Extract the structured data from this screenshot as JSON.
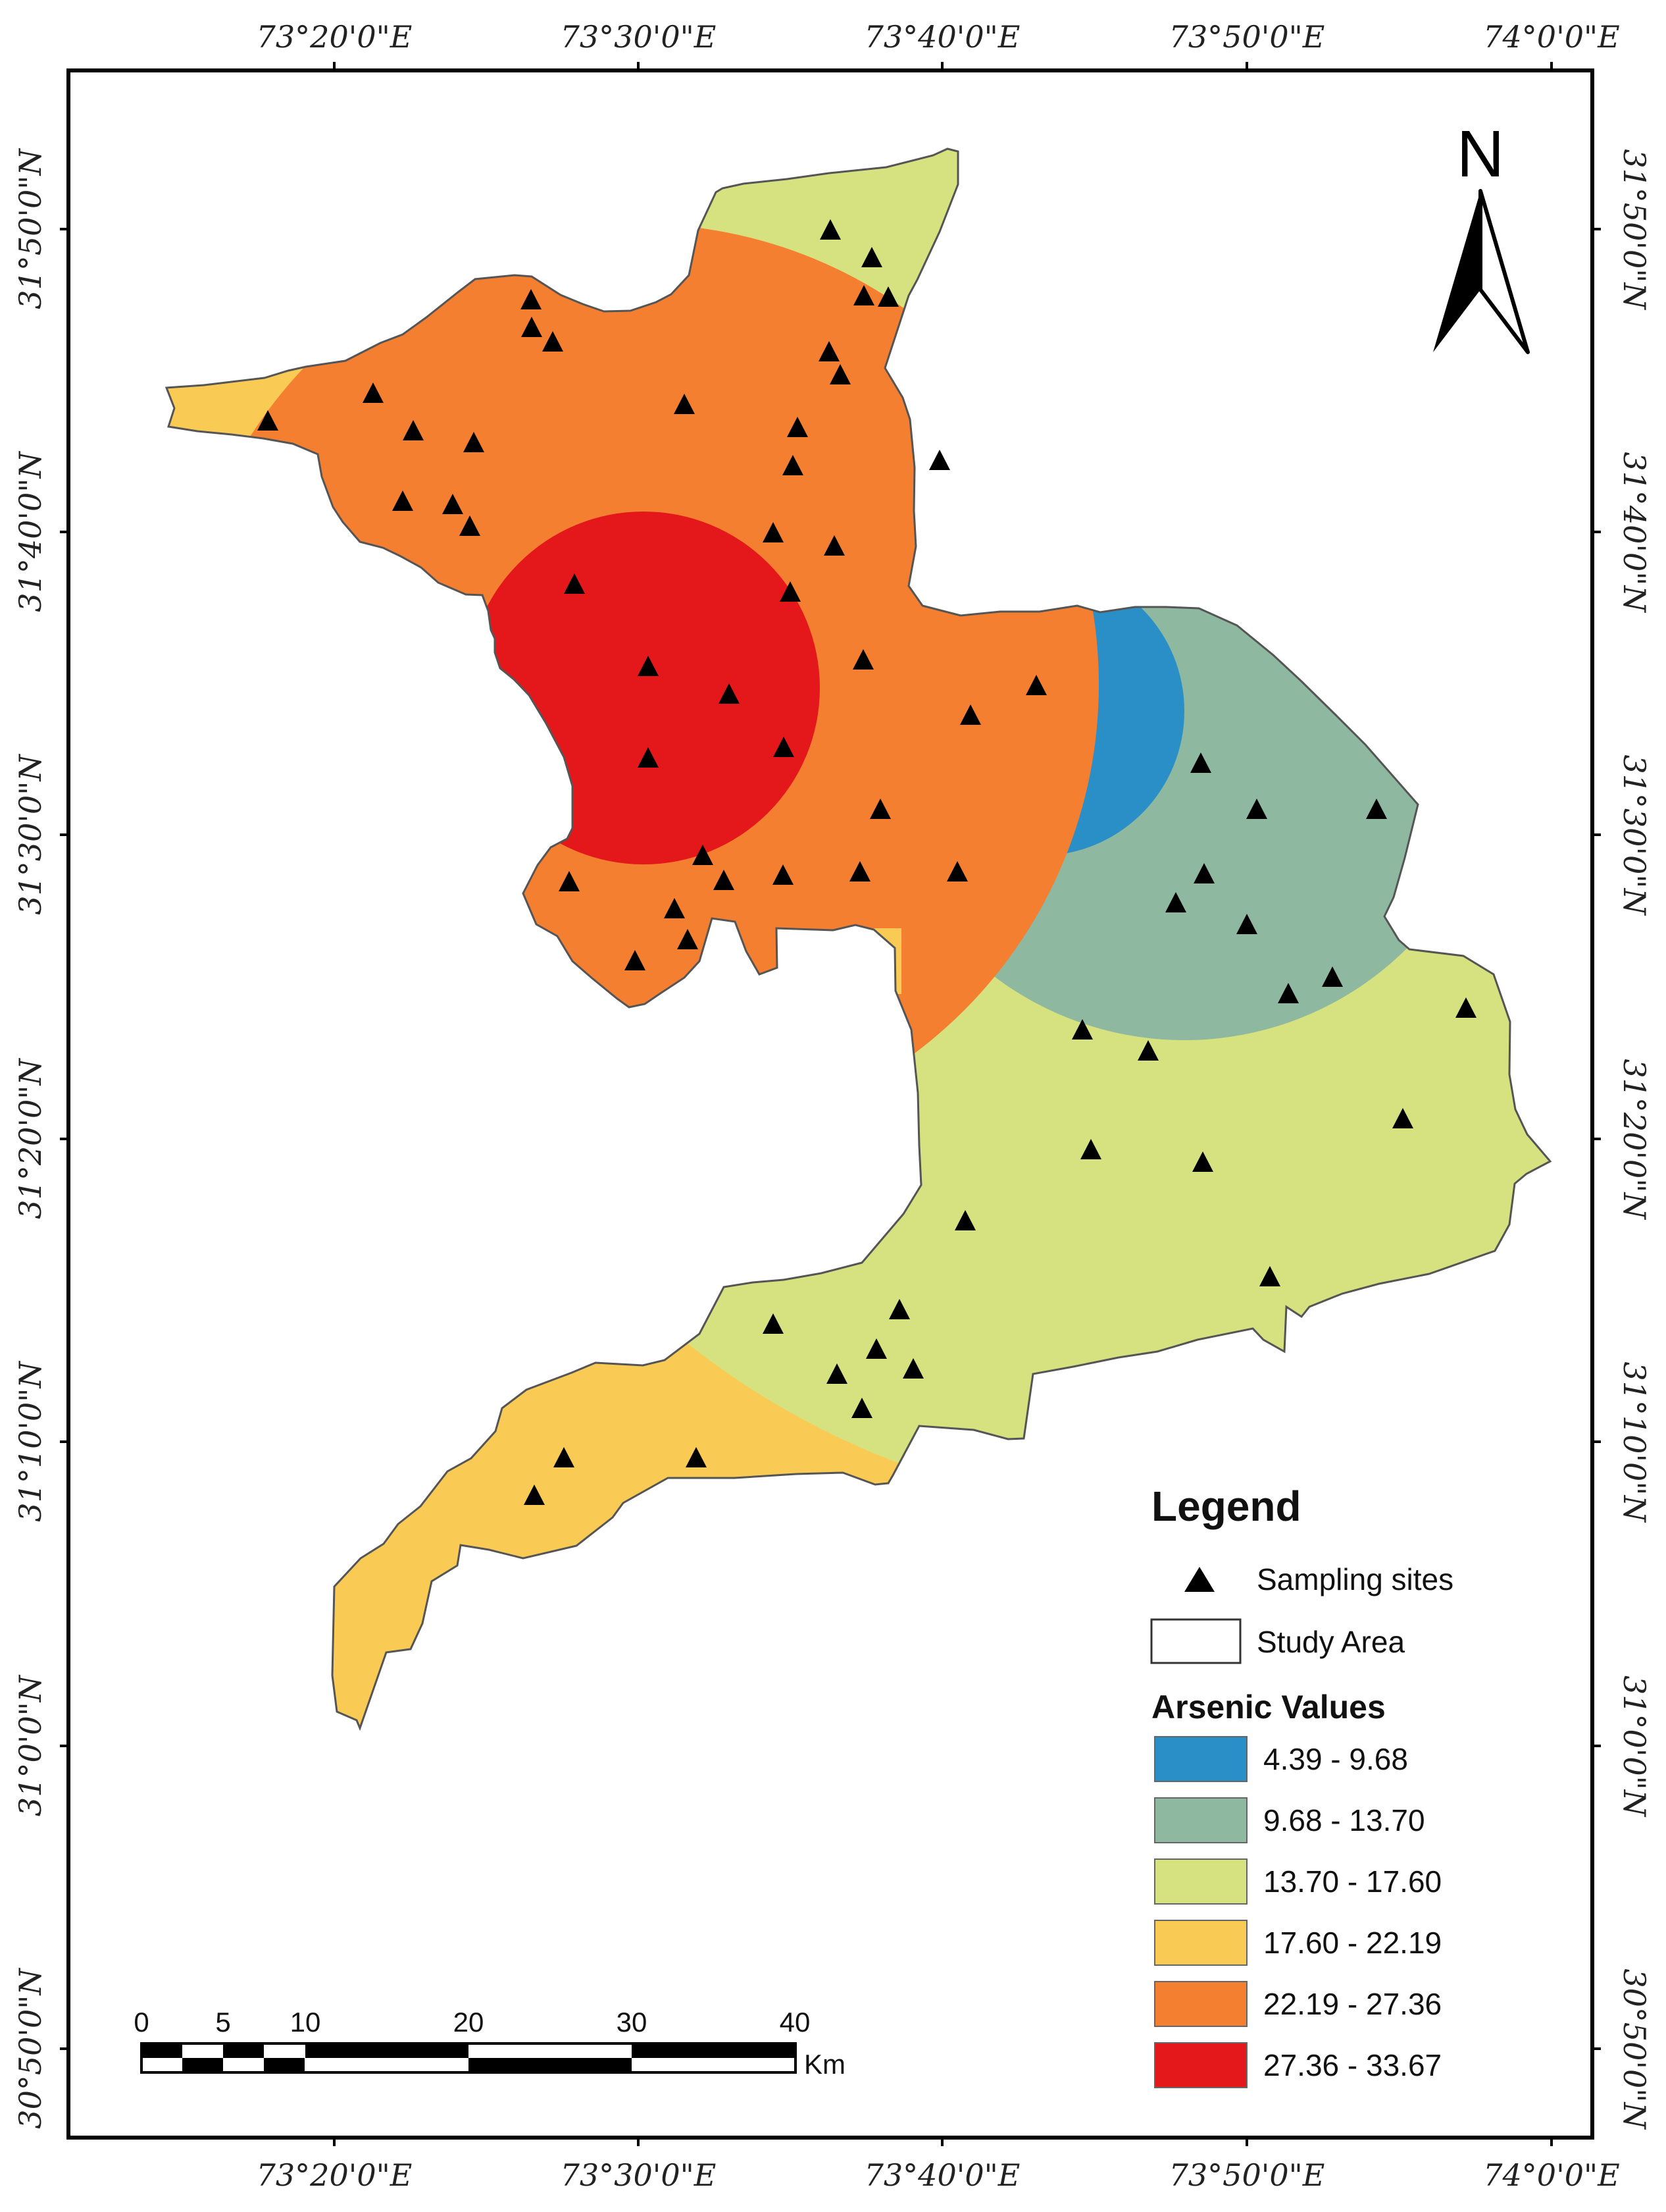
{
  "map": {
    "top_labels": [
      "73°20'0\"E",
      "73°30'0\"E",
      "73°40'0\"E",
      "73°50'0\"E",
      "74°0'0\"E"
    ],
    "bottom_labels": [
      "73°20'0\"E",
      "73°30'0\"E",
      "73°40'0\"E",
      "73°50'0\"E",
      "74°0'0\"E"
    ],
    "left_labels": [
      "31°50'0\"N",
      "31°40'0\"N",
      "31°30'0\"N",
      "31°20'0\"N",
      "31°10'0\"N",
      "31°0'0\"N",
      "30°50'0\"N"
    ],
    "right_labels": [
      "31°50'0\"N",
      "31°40'0\"N",
      "31°30'0\"N",
      "31°20'0\"N",
      "31°10'0\"N",
      "31°0'0\"N",
      "30°50'0\"N"
    ],
    "north_label": "N",
    "zone_colors": {
      "z1": "#2a8fc7",
      "z2": "#8fb8a0",
      "z3": "#d5e27f",
      "z4": "#f9cb55",
      "z5": "#f47f30",
      "z6": "#e4171b"
    }
  },
  "legend": {
    "title": "Legend",
    "sampling_sites": "Sampling sites",
    "study_area": "Study Area",
    "arsenic_title": "Arsenic Values",
    "classes": [
      {
        "range": "4.39 - 9.68",
        "color": "#2a8fc7"
      },
      {
        "range": "9.68 - 13.70",
        "color": "#8fb8a0"
      },
      {
        "range": "13.70 - 17.60",
        "color": "#d5e27f"
      },
      {
        "range": "17.60 - 22.19",
        "color": "#f9cb55"
      },
      {
        "range": "22.19 - 27.36",
        "color": "#f47f30"
      },
      {
        "range": "27.36 - 33.67",
        "color": "#e4171b"
      }
    ]
  },
  "scale_bar": {
    "ticks": [
      "0",
      "5",
      "10",
      "20",
      "30",
      "40"
    ],
    "unit": "Km"
  }
}
